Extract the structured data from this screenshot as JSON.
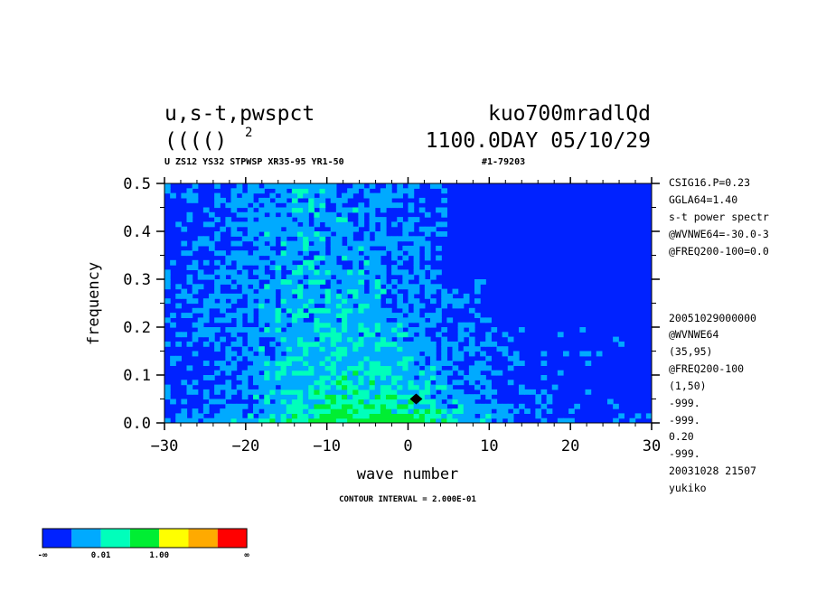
{
  "chart_data": {
    "type": "heatmap",
    "title_line1_left": "u,s-t,pwspct",
    "title_line1_right": "kuo700mradlQd",
    "title_line2_left": "(((()",
    "title_line2_sup": "2",
    "title_line2_right": "1100.0DAY 05/10/29",
    "subtitle_left": "U ZS12 YS32 STPWSP XR35-95 YR1-50",
    "subtitle_right": "#1-79203",
    "xlabel": "wave number",
    "ylabel": "frequency",
    "xlim": [
      -30,
      30
    ],
    "ylim": [
      0,
      0.5
    ],
    "x_ticks": [
      "−30",
      "−20",
      "−10",
      "0",
      "10",
      "20",
      "30"
    ],
    "y_ticks": [
      "0.0",
      "0.1",
      "0.2",
      "0.3",
      "0.4",
      "0.5"
    ],
    "contour_interval": "CONTOUR INTERVAL = 2.000E-01",
    "colorbar": {
      "colors": [
        "#0022ff",
        "#00aaff",
        "#00ffbb",
        "#00ee33",
        "#ffff00",
        "#ffaa00",
        "#ff0000"
      ],
      "labels": [
        "-∞",
        "0.01",
        "1.00",
        "∞"
      ]
    },
    "right_annotations": [
      "CSIG16.P=0.23",
      "GGLA64=1.40",
      "s-t power spectr",
      "@WVNWE64=-30.0-3",
      "@FREQ200-100=0.0",
      "20051029000000",
      "@WVNWE64",
      "(35,95)",
      "@FREQ200-100",
      "(1,50)",
      "-999.",
      "-999.",
      "0.20",
      "-999.",
      "20031028  21507",
      "yukiko"
    ],
    "peak": {
      "x": 1,
      "y": 0.05
    }
  }
}
